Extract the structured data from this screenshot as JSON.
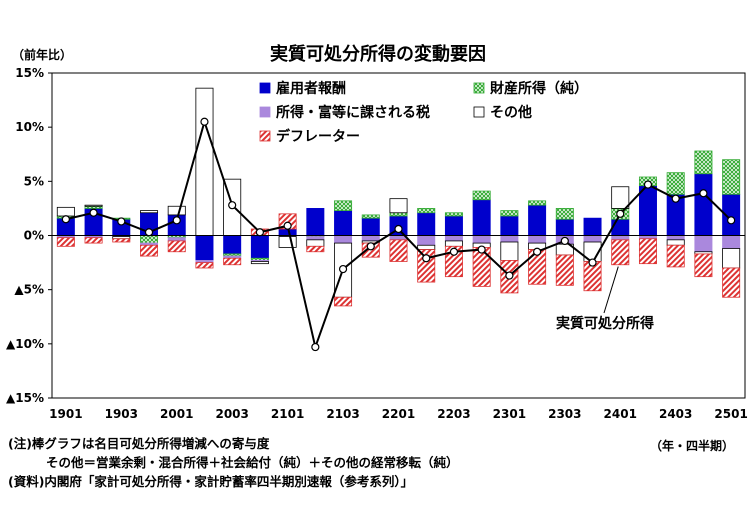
{
  "chart_data": {
    "type": "bar",
    "title": "実質可処分所得の変動要因",
    "ylabel": "（前年比）",
    "xlabel": "（年・四半期）",
    "ylim": [
      -15,
      15
    ],
    "yticks": [
      15,
      10,
      5,
      0,
      -5,
      -10,
      -15
    ],
    "ytick_labels": [
      "15%",
      "10%",
      "5%",
      "0%",
      "▲5%",
      "▲10%",
      "▲15%"
    ],
    "categories": [
      "1901",
      "1902",
      "1903",
      "1904",
      "2001",
      "2002",
      "2003",
      "2004",
      "2101",
      "2102",
      "2103",
      "2104",
      "2201",
      "2202",
      "2203",
      "2204",
      "2301",
      "2302",
      "2303",
      "2304",
      "2401",
      "2402",
      "2403",
      "2404",
      "2501"
    ],
    "xtick_labels": [
      "1901",
      "1903",
      "2001",
      "2003",
      "2101",
      "2103",
      "2201",
      "2203",
      "2301",
      "2303",
      "2401",
      "2403",
      "2501"
    ],
    "grid": false,
    "legend": "top-right",
    "series": [
      {
        "name": "雇用者報酬",
        "kind": "bar",
        "color": "#0000cc",
        "pattern": "solid",
        "values": [
          1.6,
          2.5,
          1.5,
          2.1,
          1.9,
          -2.3,
          -1.7,
          -2.1,
          0.6,
          2.5,
          2.3,
          1.6,
          1.8,
          2.1,
          1.8,
          3.3,
          1.8,
          2.8,
          1.5,
          1.6,
          1.5,
          4.6,
          3.8,
          5.7,
          3.8
        ]
      },
      {
        "name": "財産所得（純）",
        "kind": "bar",
        "color": "#33aa33",
        "pattern": "cross",
        "values": [
          0.2,
          0.2,
          0.1,
          -0.7,
          -0.2,
          0,
          -0.2,
          -0.2,
          0,
          -0.1,
          0.9,
          0.3,
          0.3,
          0.4,
          0.3,
          0.8,
          0.5,
          0.4,
          1.0,
          0,
          1.0,
          0.8,
          2.0,
          2.1,
          3.2
        ]
      },
      {
        "name": "所得・富等に課される税",
        "kind": "bar",
        "color": "#aa88dd",
        "pattern": "solid",
        "values": [
          -0.2,
          -0.2,
          -0.1,
          -0.2,
          -0.3,
          -0.2,
          -0.2,
          -0.1,
          -0.1,
          -0.3,
          -0.7,
          -0.5,
          -0.4,
          -0.9,
          -0.5,
          -0.7,
          -0.6,
          -0.7,
          -0.8,
          -0.6,
          -0.4,
          -0.3,
          -0.4,
          -1.5,
          -1.2
        ]
      },
      {
        "name": "その他",
        "kind": "bar",
        "color": "#ffffff",
        "pattern": "outline",
        "values": [
          0.8,
          0.1,
          -0.2,
          0.2,
          0.8,
          13.6,
          5.2,
          -0.2,
          -1.0,
          -0.6,
          -5.0,
          -0.2,
          1.3,
          -0.4,
          -0.5,
          -0.4,
          -1.7,
          -0.6,
          -1.0,
          -1.8,
          2.0,
          0,
          -0.5,
          -0.2,
          -1.8
        ]
      },
      {
        "name": "デフレーター",
        "kind": "bar",
        "color": "#dd3333",
        "pattern": "diag",
        "values": [
          -0.8,
          -0.5,
          -0.3,
          -1.0,
          -1.0,
          -0.5,
          -0.6,
          0.6,
          1.4,
          -0.5,
          -0.8,
          -1.3,
          -2.0,
          -3.0,
          -2.8,
          -3.6,
          -3.0,
          -3.2,
          -2.8,
          -2.7,
          -2.3,
          -2.3,
          -2.0,
          -2.1,
          -2.7
        ]
      },
      {
        "name": "実質可処分所得",
        "kind": "line",
        "color": "#000000",
        "values": [
          1.5,
          2.1,
          1.3,
          0.3,
          1.4,
          10.5,
          2.8,
          0.3,
          0.9,
          -10.3,
          -3.1,
          -1.0,
          0.6,
          -2.1,
          -1.5,
          -1.3,
          -3.7,
          -1.5,
          -0.5,
          -2.5,
          2.0,
          4.7,
          3.4,
          3.9,
          1.4
        ]
      }
    ],
    "annotations": [
      {
        "text": "実質可処分所得"
      }
    ]
  },
  "notes": {
    "line1": "(注)棒グラフは名目可処分所得増減への寄与度",
    "line2": "その他＝営業余剰・混合所得＋社会給付（純）＋その他の経常移転（純）",
    "line3": "(資料)内閣府「家計可処分所得・家計貯蓄率四半期別速報（参考系列）」"
  }
}
